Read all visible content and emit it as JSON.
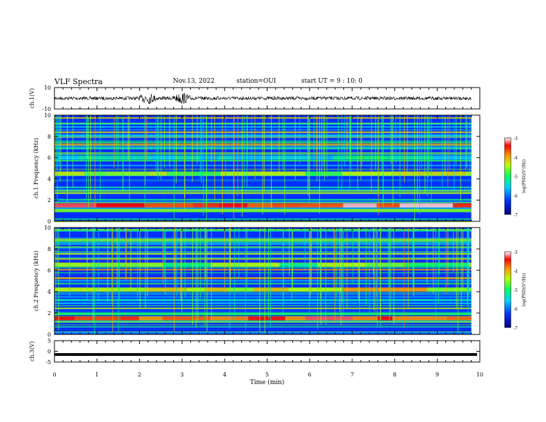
{
  "header": {
    "title": "VLF Spectra",
    "date": "Nov.13, 2022",
    "station": "station=OUI",
    "start": "start UT = 9 : 10: 0"
  },
  "chart_data": [
    {
      "type": "line",
      "panel": "ch1-waveform",
      "ylabel": "ch.1(V)",
      "ylim": [
        -10,
        10
      ],
      "yticks": [
        "10",
        "-10"
      ],
      "xlim": [
        0,
        9.8
      ],
      "burst_minutes": [
        2.2,
        3.0
      ],
      "series": [
        {
          "values_amplitude_baseline": 0
        }
      ]
    },
    {
      "type": "heatmap",
      "panel": "ch1-spectrogram",
      "ylabel": "ch.1 Frequency (kHz)",
      "ylim": [
        0,
        10
      ],
      "yticks": [
        "0",
        "2",
        "4",
        "6",
        "8",
        "10"
      ],
      "xlim": [
        0,
        9.8
      ],
      "colorbar": {
        "label": "log(PSD)(V²/Hz)",
        "range": [
          -7,
          -3
        ],
        "ticks": [
          "-3",
          "-4",
          "-5",
          "-6",
          "-7"
        ]
      },
      "bands": [
        {
          "freq_khz": 6.0,
          "level": -5.4
        },
        {
          "freq_khz": 4.5,
          "level": -4.6
        },
        {
          "freq_khz": 1.5,
          "level": -3.4
        }
      ]
    },
    {
      "type": "heatmap",
      "panel": "ch2-spectrogram",
      "ylabel": "ch.2 Frequency (kHz)",
      "ylim": [
        0,
        10
      ],
      "yticks": [
        "0",
        "2",
        "4",
        "6",
        "8",
        "10"
      ],
      "xlim": [
        0,
        9.8
      ],
      "colorbar": {
        "label": "log(PSD)(V²/Hz)",
        "range": [
          -7,
          -3
        ],
        "ticks": [
          "-3",
          "-4",
          "-5",
          "-6",
          "-7"
        ]
      },
      "bands": [
        {
          "freq_khz": 6.5,
          "level": -4.8
        },
        {
          "freq_khz": 4.2,
          "level": -4.3
        },
        {
          "freq_khz": 1.5,
          "level": -3.6
        }
      ]
    },
    {
      "type": "line",
      "panel": "ch3-waveform",
      "ylabel": "ch.3(V)",
      "ylim": [
        -5,
        5
      ],
      "yticks": [
        "5",
        "0",
        "-5"
      ],
      "series": [
        {
          "constant_value": -1.5
        }
      ]
    },
    {
      "type": "axis",
      "xlabel": "Time (min)",
      "xlim": [
        0,
        10
      ],
      "xticks": [
        "0",
        "1",
        "2",
        "3",
        "4",
        "5",
        "6",
        "7",
        "8",
        "9",
        "10"
      ]
    }
  ]
}
